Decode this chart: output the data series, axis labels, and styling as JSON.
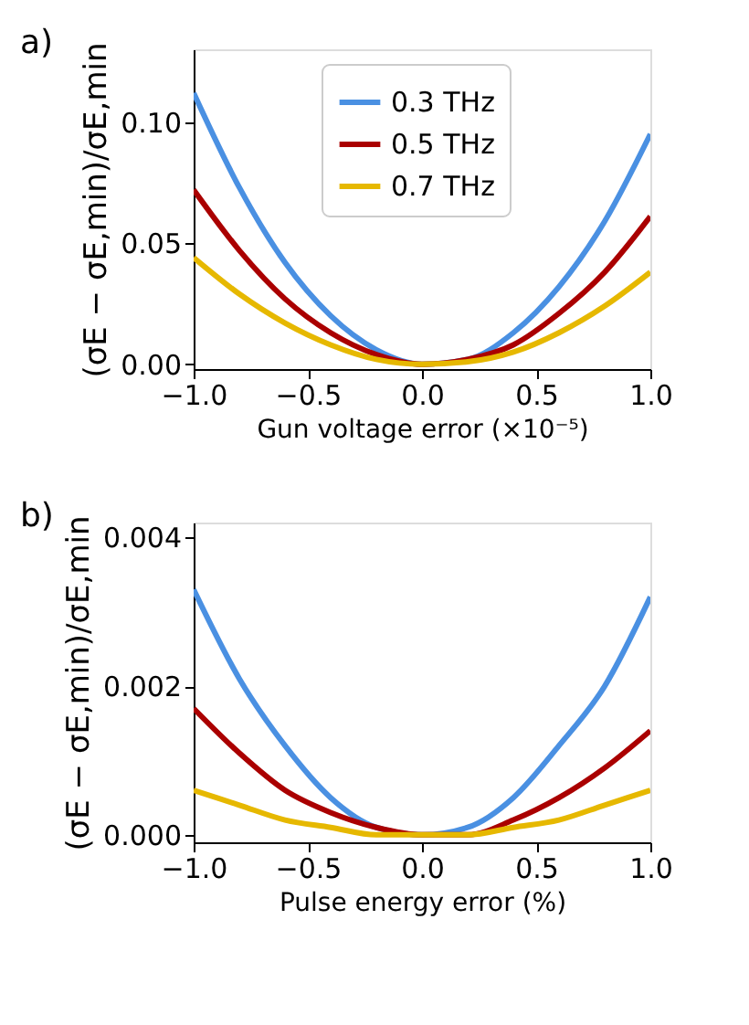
{
  "chart_data": [
    {
      "type": "line",
      "annotations": [
        "a)"
      ],
      "xlabel": "Gun voltage error (×10⁻⁵)",
      "ylabel": "(σE − σE,min)/σE,min",
      "x": [
        -1,
        -0.8,
        -0.6,
        -0.4,
        -0.2,
        0,
        0.2,
        0.4,
        0.6,
        0.8,
        1
      ],
      "series": [
        {
          "name": "0.3 THz",
          "color": "#4a90e2",
          "values": [
            0.112,
            0.073,
            0.042,
            0.02,
            0.006,
            0,
            0.002,
            0.013,
            0.032,
            0.059,
            0.095
          ]
        },
        {
          "name": "0.5 THz",
          "color": "#aa0000",
          "values": [
            0.072,
            0.047,
            0.027,
            0.013,
            0.004,
            0,
            0.002,
            0.008,
            0.021,
            0.038,
            0.061
          ]
        },
        {
          "name": "0.7 THz",
          "color": "#e6b800",
          "values": [
            0.044,
            0.029,
            0.017,
            0.008,
            0.002,
            0,
            0.001,
            0.005,
            0.013,
            0.024,
            0.038
          ]
        }
      ],
      "xlim": [
        -1,
        1
      ],
      "ylim": [
        -0.002,
        0.13
      ],
      "xticks": [
        {
          "value": -1,
          "label": "−1.0"
        },
        {
          "value": -0.5,
          "label": "−0.5"
        },
        {
          "value": 0,
          "label": "0.0"
        },
        {
          "value": 0.5,
          "label": "0.5"
        },
        {
          "value": 1,
          "label": "1.0"
        }
      ],
      "yticks": [
        {
          "value": 0,
          "label": "0.00"
        },
        {
          "value": 0.05,
          "label": "0.05"
        },
        {
          "value": 0.1,
          "label": "0.10"
        }
      ],
      "legend": "top",
      "grid": false,
      "marker": "none",
      "line_style": "solid"
    },
    {
      "type": "line",
      "annotations": [
        "b)"
      ],
      "xlabel": "Pulse energy error (%)",
      "ylabel": "(σE − σE,min)/σE,min",
      "x": [
        -1,
        -0.8,
        -0.6,
        -0.4,
        -0.2,
        0,
        0.2,
        0.4,
        0.6,
        0.8,
        1
      ],
      "series": [
        {
          "name": "0.3 THz",
          "color": "#4a90e2",
          "values": [
            0.0033,
            0.0021,
            0.0012,
            0.0005,
            0.0001,
            0,
            0.0001,
            0.0005,
            0.0012,
            0.002,
            0.0032
          ]
        },
        {
          "name": "0.5 THz",
          "color": "#aa0000",
          "values": [
            0.0017,
            0.0011,
            0.0006,
            0.0003,
            0.0001,
            0,
            0.0,
            0.0002,
            0.0005,
            0.0009,
            0.0014
          ]
        },
        {
          "name": "0.7 THz",
          "color": "#e6b800",
          "values": [
            0.0006,
            0.0004,
            0.0002,
            0.0001,
            0.0,
            0,
            0.0,
            0.0001,
            0.0002,
            0.0004,
            0.0006
          ]
        }
      ],
      "xlim": [
        -1,
        1
      ],
      "ylim": [
        -0.0001,
        0.0042
      ],
      "xticks": [
        {
          "value": -1,
          "label": "−1.0"
        },
        {
          "value": -0.5,
          "label": "−0.5"
        },
        {
          "value": 0,
          "label": "0.0"
        },
        {
          "value": 0.5,
          "label": "0.5"
        },
        {
          "value": 1,
          "label": "1.0"
        }
      ],
      "yticks": [
        {
          "value": 0,
          "label": "0.000"
        },
        {
          "value": 0.002,
          "label": "0.002"
        },
        {
          "value": 0.004,
          "label": "0.004"
        }
      ],
      "legend": "top",
      "grid": false,
      "marker": "none",
      "line_style": "solid"
    }
  ]
}
